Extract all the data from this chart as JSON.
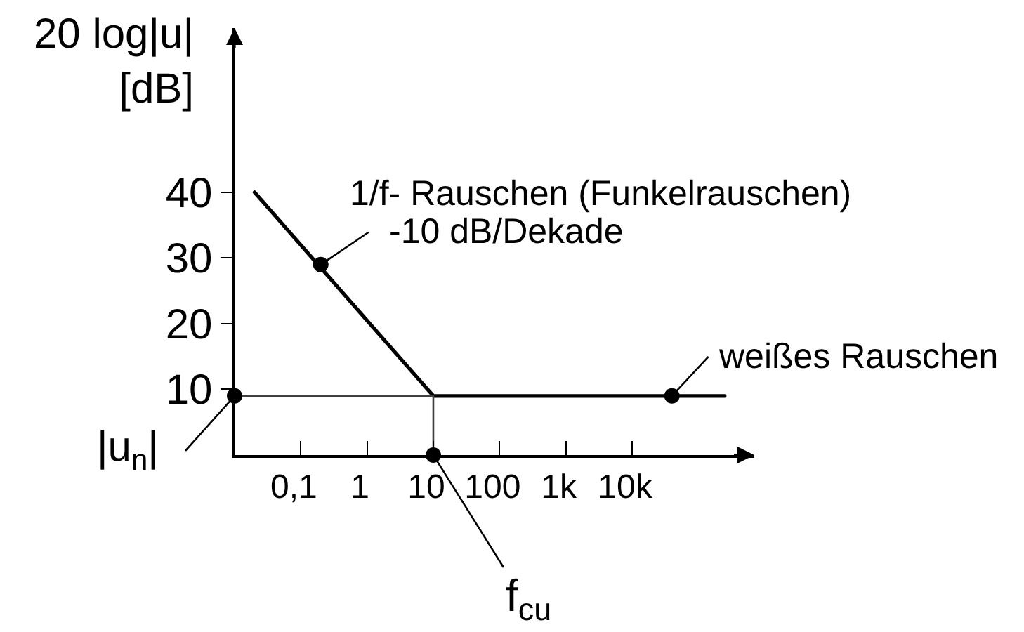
{
  "chart_data": {
    "type": "line",
    "ylabel": "20 log|u|\n[dB]",
    "log": "x",
    "xlim": [
      0.01,
      700000
    ],
    "xticks": [
      {
        "value": 0.1,
        "label": "0,1"
      },
      1,
      10,
      100,
      {
        "value": 1000,
        "label": "1k"
      },
      {
        "value": 10000,
        "label": "10k"
      }
    ],
    "ylim": [
      0,
      65
    ],
    "yticks": [
      10,
      20,
      30,
      40
    ],
    "series": [
      {
        "color": "#000000",
        "x": [
          0.02,
          10,
          250000
        ],
        "values": [
          40,
          9,
          9
        ],
        "marker": "none"
      },
      {
        "color": "#404040",
        "x": [
          0.01,
          10,
          10
        ],
        "values": [
          9,
          9,
          0
        ],
        "marker": "none"
      },
      {
        "type": "scatter",
        "color": "#000000",
        "x": [
          0.01,
          0.2,
          10,
          40000
        ],
        "values": [
          9,
          29,
          0,
          9
        ],
        "marker": "circle"
      }
    ],
    "annotations": [
      "1/f- Rauschen (Funkelrauschen)",
      {
        "text": "-10 dB/Dekade",
        "x": 0.2,
        "y": 29
      },
      {
        "text": "weißes Rauschen",
        "x": 40000,
        "y": 9
      },
      {
        "text": "|u$_{n}$|",
        "x": 0.01,
        "y": 9
      },
      {
        "text": "f$_{cu}$",
        "x": 10,
        "y": 0
      }
    ]
  }
}
